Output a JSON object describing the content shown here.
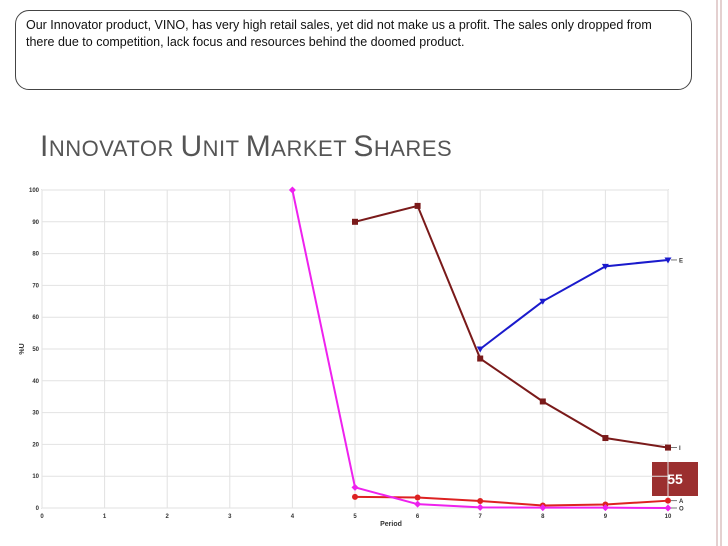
{
  "callout": {
    "text": "Our Innovator product, VINO, has very high retail sales, yet did not make us a profit.  The sales only dropped from there due to competition, lack focus and resources behind the doomed product."
  },
  "slide": {
    "title": "Innovator Unit Market Shares",
    "page_number": "55",
    "accent_color": "#9b2f2f"
  },
  "chart_data": {
    "type": "line",
    "title": "Innovator Unit Market Shares",
    "xlabel": "Period",
    "ylabel": "%U",
    "xlim": [
      0,
      10
    ],
    "ylim": [
      0,
      100
    ],
    "x_ticks": [
      "0",
      "1",
      "2",
      "3",
      "4",
      "5",
      "6",
      "7",
      "8",
      "9",
      "10"
    ],
    "y_ticks": [
      "0",
      "10",
      "20",
      "30",
      "40",
      "50",
      "60",
      "70",
      "80",
      "90",
      "100"
    ],
    "grid": true,
    "series": [
      {
        "name": "E",
        "color": "#1a1acc",
        "marker": "triangle-down",
        "points": [
          [
            7,
            50
          ],
          [
            8,
            65
          ],
          [
            9,
            76
          ],
          [
            10,
            78
          ]
        ]
      },
      {
        "name": "I",
        "color": "#7a1a1a",
        "marker": "square",
        "points": [
          [
            5,
            90
          ],
          [
            6,
            95
          ],
          [
            7,
            47
          ],
          [
            8,
            33.5
          ],
          [
            9,
            22
          ],
          [
            10,
            19
          ]
        ]
      },
      {
        "name": "A",
        "color": "#dd2222",
        "marker": "circle",
        "points": [
          [
            5,
            3.5
          ],
          [
            6,
            3.3
          ],
          [
            7,
            2.2
          ],
          [
            8,
            0.8
          ],
          [
            9,
            1.1
          ],
          [
            10,
            2.3
          ]
        ]
      },
      {
        "name": "O",
        "color": "#ee22ee",
        "marker": "diamond",
        "points": [
          [
            4,
            100
          ],
          [
            5,
            6.5
          ],
          [
            6,
            1.2
          ],
          [
            7,
            0.2
          ],
          [
            8,
            0.1
          ],
          [
            9,
            0.1
          ],
          [
            10,
            0
          ]
        ]
      }
    ]
  }
}
